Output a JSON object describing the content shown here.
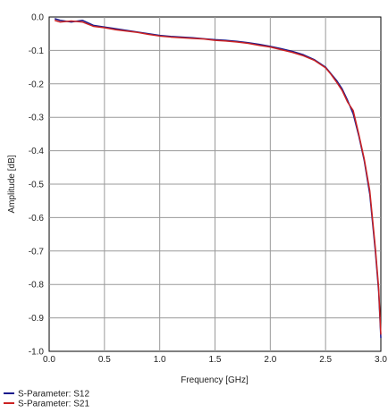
{
  "chart_data": {
    "type": "line",
    "title": "",
    "xlabel": "Frequency [GHz]",
    "ylabel": "Amplitude [dB]",
    "xlim": [
      0,
      3.0
    ],
    "ylim": [
      -1.0,
      0.0
    ],
    "x_ticks": [
      "0.0",
      "0.5",
      "1.0",
      "1.5",
      "2.0",
      "2.5",
      "3.0"
    ],
    "y_ticks": [
      "0.0",
      "-0.1",
      "-0.2",
      "-0.3",
      "-0.4",
      "-0.5",
      "-0.6",
      "-0.7",
      "-0.8",
      "-0.9",
      "-1.0"
    ],
    "grid": true,
    "legend_position": "bottom-left",
    "series": [
      {
        "name": "S-Parameter: S12",
        "color": "#1a1a8c",
        "x": [
          0.05,
          0.1,
          0.2,
          0.3,
          0.4,
          0.5,
          0.6,
          0.7,
          0.8,
          0.9,
          1.0,
          1.1,
          1.2,
          1.3,
          1.4,
          1.5,
          1.6,
          1.7,
          1.8,
          1.9,
          2.0,
          2.1,
          2.2,
          2.3,
          2.4,
          2.5,
          2.55,
          2.6,
          2.65,
          2.7,
          2.75,
          2.8,
          2.85,
          2.9,
          2.95,
          2.98,
          3.0
        ],
        "values": [
          -0.005,
          -0.01,
          -0.015,
          -0.01,
          -0.025,
          -0.03,
          -0.035,
          -0.04,
          -0.045,
          -0.05,
          -0.055,
          -0.058,
          -0.06,
          -0.062,
          -0.065,
          -0.068,
          -0.07,
          -0.073,
          -0.077,
          -0.082,
          -0.088,
          -0.095,
          -0.103,
          -0.113,
          -0.128,
          -0.15,
          -0.17,
          -0.19,
          -0.215,
          -0.25,
          -0.29,
          -0.355,
          -0.43,
          -0.53,
          -0.7,
          -0.82,
          -0.96
        ]
      },
      {
        "name": "S-Parameter: S21",
        "color": "#cc2222",
        "x": [
          0.05,
          0.1,
          0.2,
          0.3,
          0.4,
          0.5,
          0.6,
          0.7,
          0.8,
          0.9,
          1.0,
          1.1,
          1.2,
          1.3,
          1.4,
          1.5,
          1.6,
          1.7,
          1.8,
          1.9,
          2.0,
          2.1,
          2.2,
          2.3,
          2.4,
          2.5,
          2.55,
          2.6,
          2.65,
          2.7,
          2.75,
          2.8,
          2.85,
          2.9,
          2.95,
          2.98,
          3.0
        ],
        "values": [
          -0.01,
          -0.015,
          -0.012,
          -0.015,
          -0.028,
          -0.032,
          -0.038,
          -0.042,
          -0.046,
          -0.052,
          -0.057,
          -0.06,
          -0.062,
          -0.064,
          -0.066,
          -0.07,
          -0.072,
          -0.075,
          -0.079,
          -0.085,
          -0.09,
          -0.098,
          -0.106,
          -0.116,
          -0.13,
          -0.152,
          -0.172,
          -0.195,
          -0.22,
          -0.255,
          -0.28,
          -0.35,
          -0.425,
          -0.52,
          -0.69,
          -0.81,
          -0.95
        ]
      }
    ]
  }
}
